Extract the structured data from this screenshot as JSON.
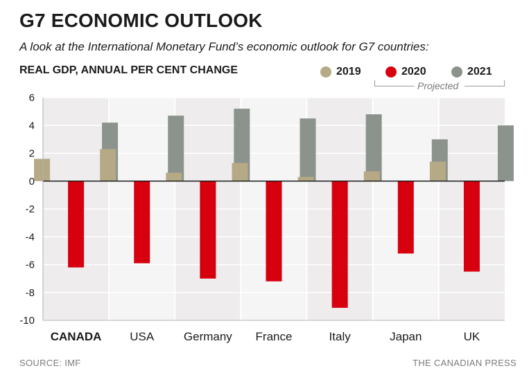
{
  "title": "G7 ECONOMIC OUTLOOK",
  "subtitle": "A look at the International Monetary Fund’s economic outlook for G7 countries:",
  "units_label": "REAL GDP, ANNUAL PER CENT CHANGE",
  "legend": [
    {
      "label": "2019",
      "color": "#b5aa85"
    },
    {
      "label": "2020",
      "color": "#d6000f"
    },
    {
      "label": "2021",
      "color": "#8c938c"
    }
  ],
  "projected_label": "Projected",
  "source": "SOURCE: IMF",
  "credit": "THE CANADIAN PRESS",
  "chart_data": {
    "type": "bar",
    "title": "",
    "xlabel": "",
    "ylabel": "",
    "categories": [
      "CANADA",
      "USA",
      "Germany",
      "France",
      "Italy",
      "Japan",
      "UK"
    ],
    "highlight_category": "CANADA",
    "series": [
      {
        "name": "2019",
        "color": "#b5aa85",
        "values": [
          1.6,
          2.3,
          0.6,
          1.3,
          0.3,
          0.7,
          1.4
        ]
      },
      {
        "name": "2020",
        "color": "#d6000f",
        "values": [
          -6.2,
          -5.9,
          -7.0,
          -7.2,
          -9.1,
          -5.2,
          -6.5
        ]
      },
      {
        "name": "2021",
        "color": "#8c938c",
        "values": [
          4.2,
          4.7,
          5.2,
          4.5,
          4.8,
          3.0,
          4.0
        ]
      }
    ],
    "ylim": [
      -10,
      6
    ],
    "yticks": [
      6,
      4,
      2,
      0,
      -2,
      -4,
      -6,
      -8,
      -10
    ],
    "grid": true
  }
}
